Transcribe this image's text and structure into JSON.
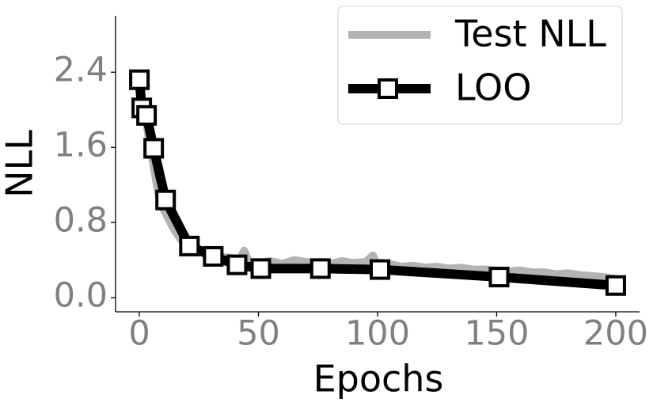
{
  "chart_data": {
    "type": "line",
    "xlabel": "Epochs",
    "ylabel": "NLL",
    "xlim": [
      -10,
      210
    ],
    "ylim": [
      -0.15,
      3.0
    ],
    "xticks": [
      0,
      50,
      100,
      150,
      200
    ],
    "yticks": [
      {
        "value": 0,
        "label": "0.0"
      },
      0.8,
      1.6,
      2.4
    ],
    "legend": "upper right",
    "grid": false,
    "series": [
      {
        "name": "Test NLL",
        "color": "#b3b3b3",
        "marker": "none",
        "x": [
          0,
          1,
          2,
          3,
          4,
          5,
          6,
          7,
          8,
          10,
          12,
          14,
          16,
          18,
          20,
          22,
          25,
          28,
          30,
          33,
          36,
          40,
          42,
          44,
          46,
          50,
          55,
          60,
          65,
          70,
          75,
          80,
          85,
          90,
          95,
          98,
          100,
          105,
          110,
          115,
          120,
          125,
          130,
          135,
          140,
          145,
          150,
          155,
          160,
          165,
          170,
          175,
          180,
          185,
          190,
          195,
          200
        ],
        "values": [
          2.3,
          2.1,
          1.95,
          1.85,
          1.7,
          1.55,
          1.4,
          1.25,
          1.1,
          0.95,
          0.85,
          0.75,
          0.67,
          0.6,
          0.55,
          0.52,
          0.5,
          0.47,
          0.46,
          0.44,
          0.43,
          0.42,
          0.4,
          0.5,
          0.38,
          0.37,
          0.39,
          0.36,
          0.4,
          0.38,
          0.37,
          0.36,
          0.39,
          0.37,
          0.38,
          0.45,
          0.34,
          0.36,
          0.33,
          0.34,
          0.32,
          0.33,
          0.31,
          0.32,
          0.3,
          0.3,
          0.29,
          0.28,
          0.29,
          0.27,
          0.27,
          0.25,
          0.26,
          0.24,
          0.23,
          0.22,
          0.2
        ]
      },
      {
        "name": "LOO",
        "color": "#000000",
        "marker": "square",
        "x": [
          0,
          1,
          3,
          6,
          11,
          21,
          31,
          41,
          51,
          76,
          101,
          151,
          200
        ],
        "values": [
          2.32,
          2.02,
          1.94,
          1.59,
          1.04,
          0.55,
          0.44,
          0.35,
          0.31,
          0.31,
          0.3,
          0.22,
          0.13
        ]
      }
    ]
  }
}
